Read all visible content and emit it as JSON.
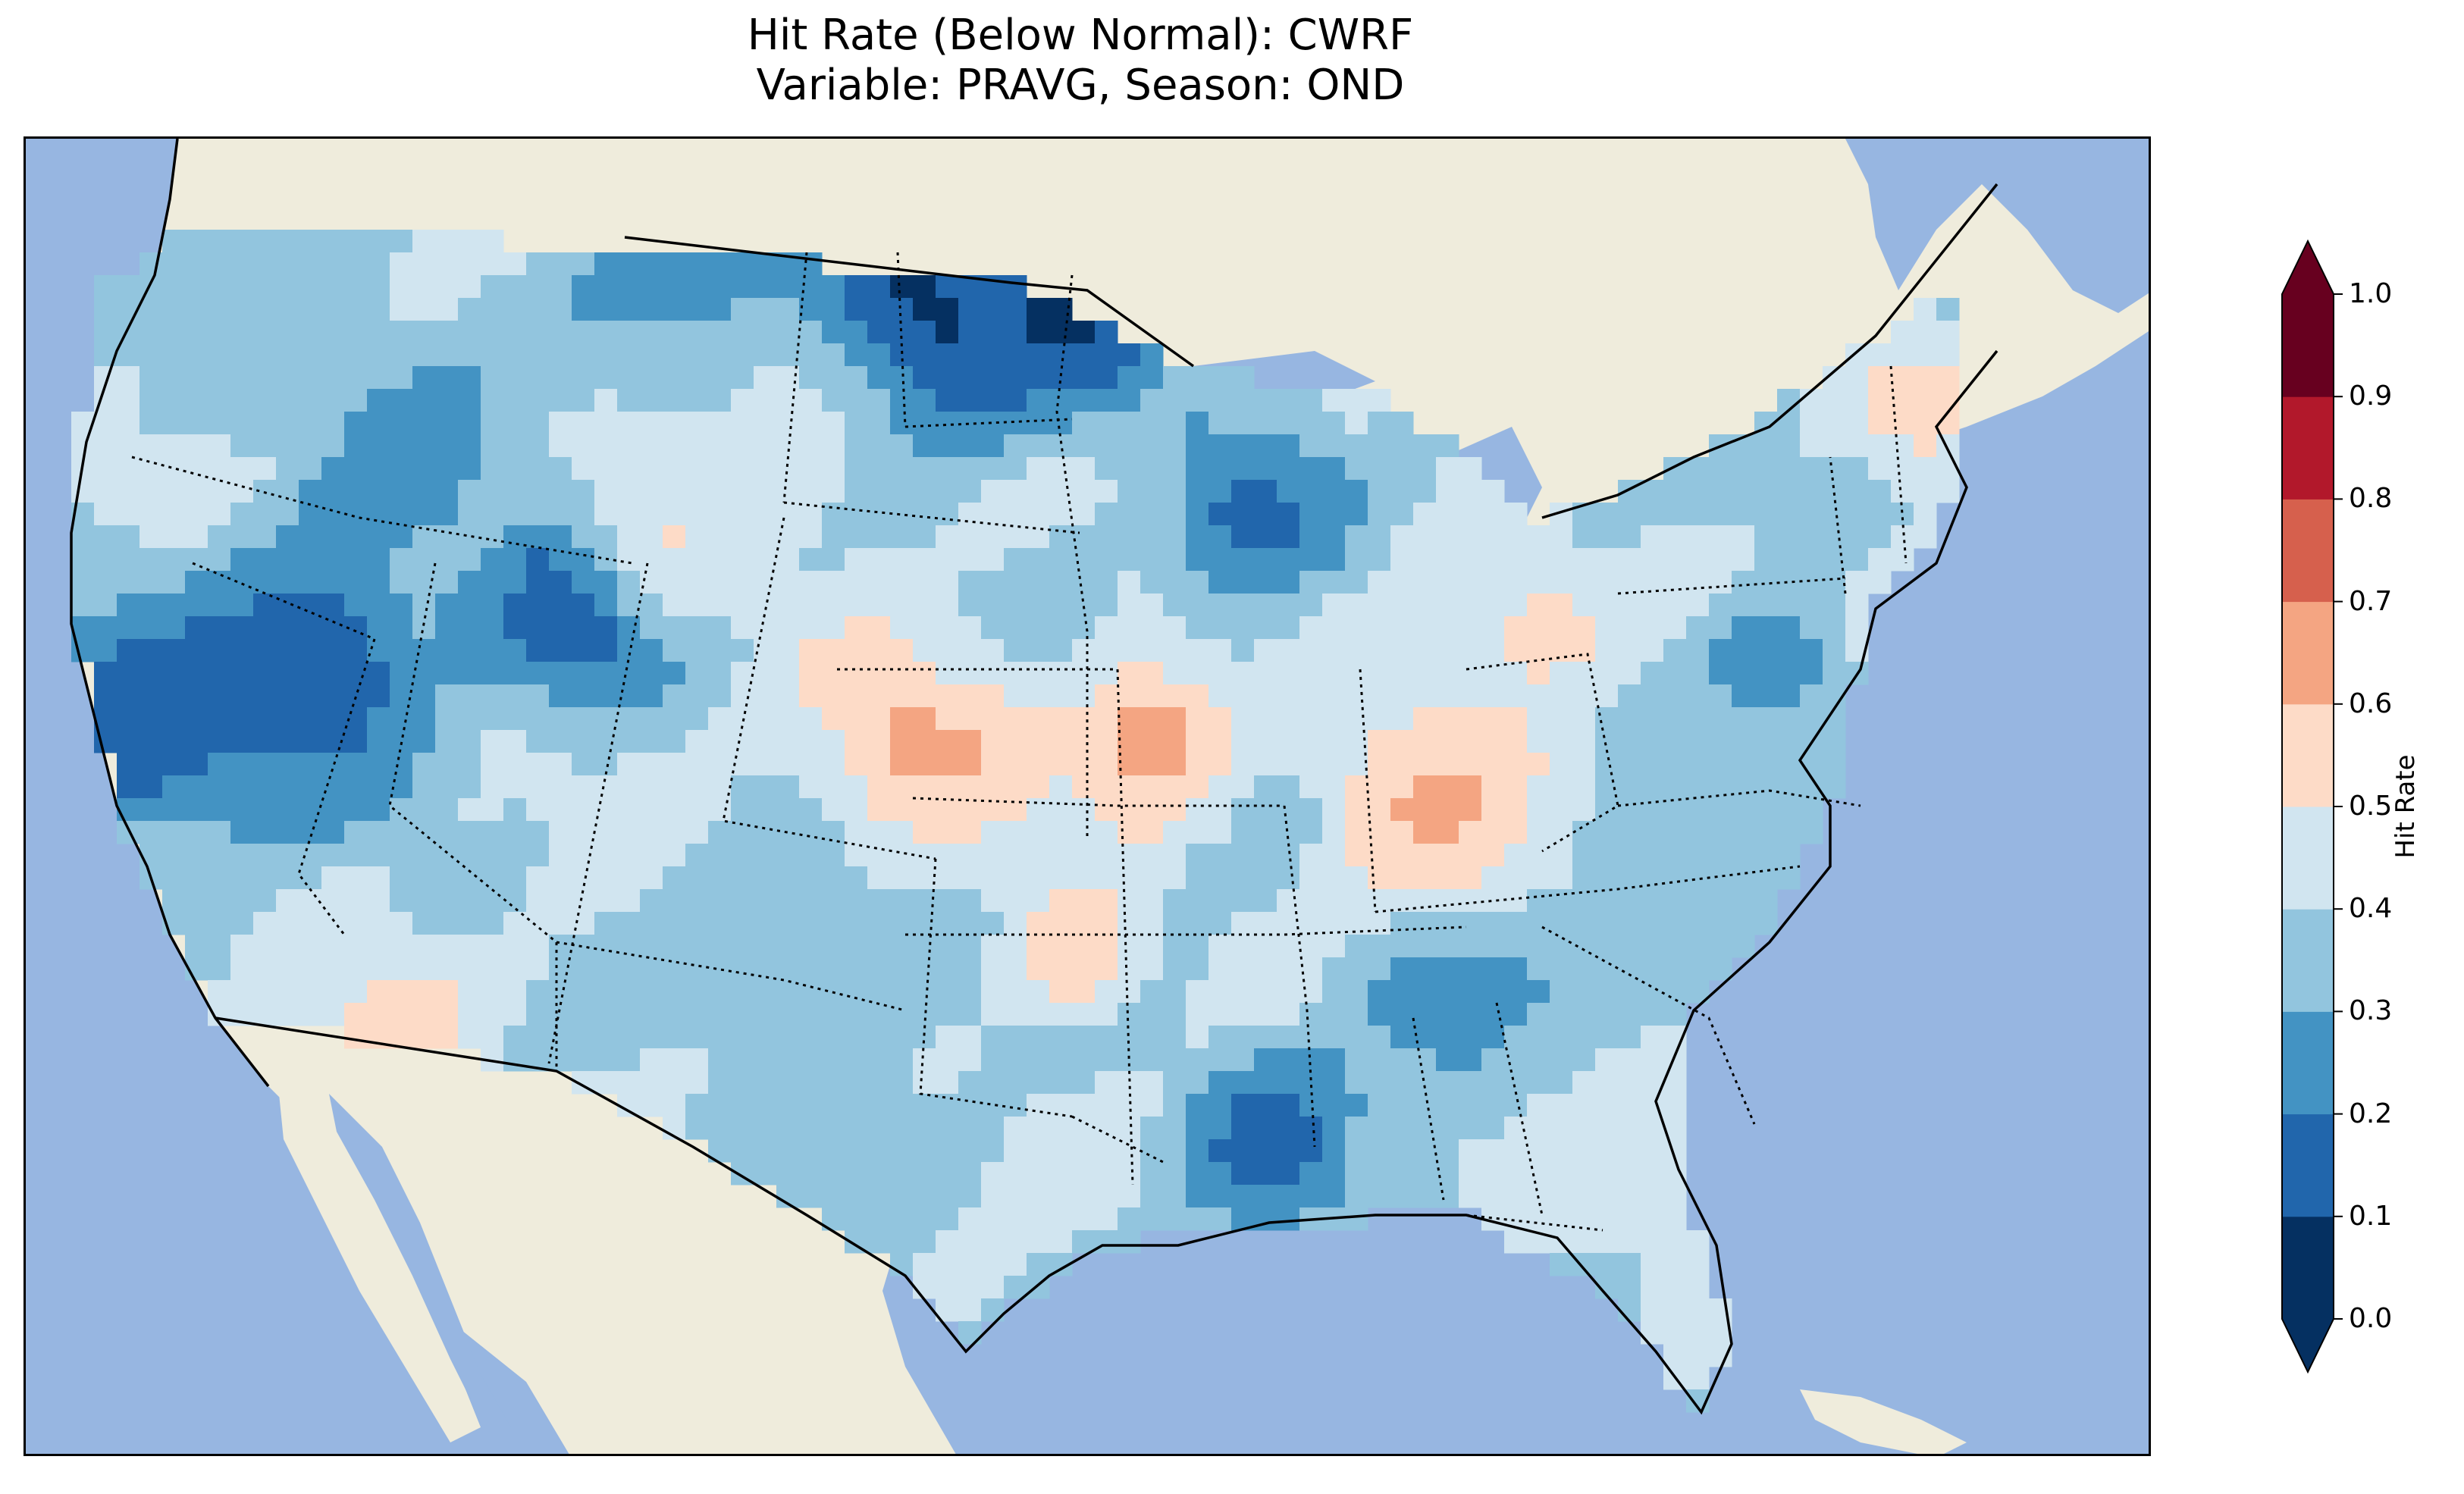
{
  "title": {
    "line1": "Hit Rate (Below Normal): CWRF",
    "line2": "Variable: PRAVG, Season: OND"
  },
  "map": {
    "region": "Contiguous United States",
    "ocean_color": "#97b6e1",
    "land_color": "#efecdc",
    "borders": "state boundaries dotted, coastline solid"
  },
  "colorbar": {
    "label": "Hit Rate",
    "ticks": [
      "0.0",
      "0.1",
      "0.2",
      "0.3",
      "0.4",
      "0.5",
      "0.6",
      "0.7",
      "0.8",
      "0.9",
      "1.0"
    ],
    "colors": [
      "#053061",
      "#2166ac",
      "#4393c3",
      "#92c5de",
      "#d1e5f0",
      "#fddbc7",
      "#f4a582",
      "#d6604d",
      "#b2182b",
      "#67001f"
    ],
    "extend": "both"
  }
}
